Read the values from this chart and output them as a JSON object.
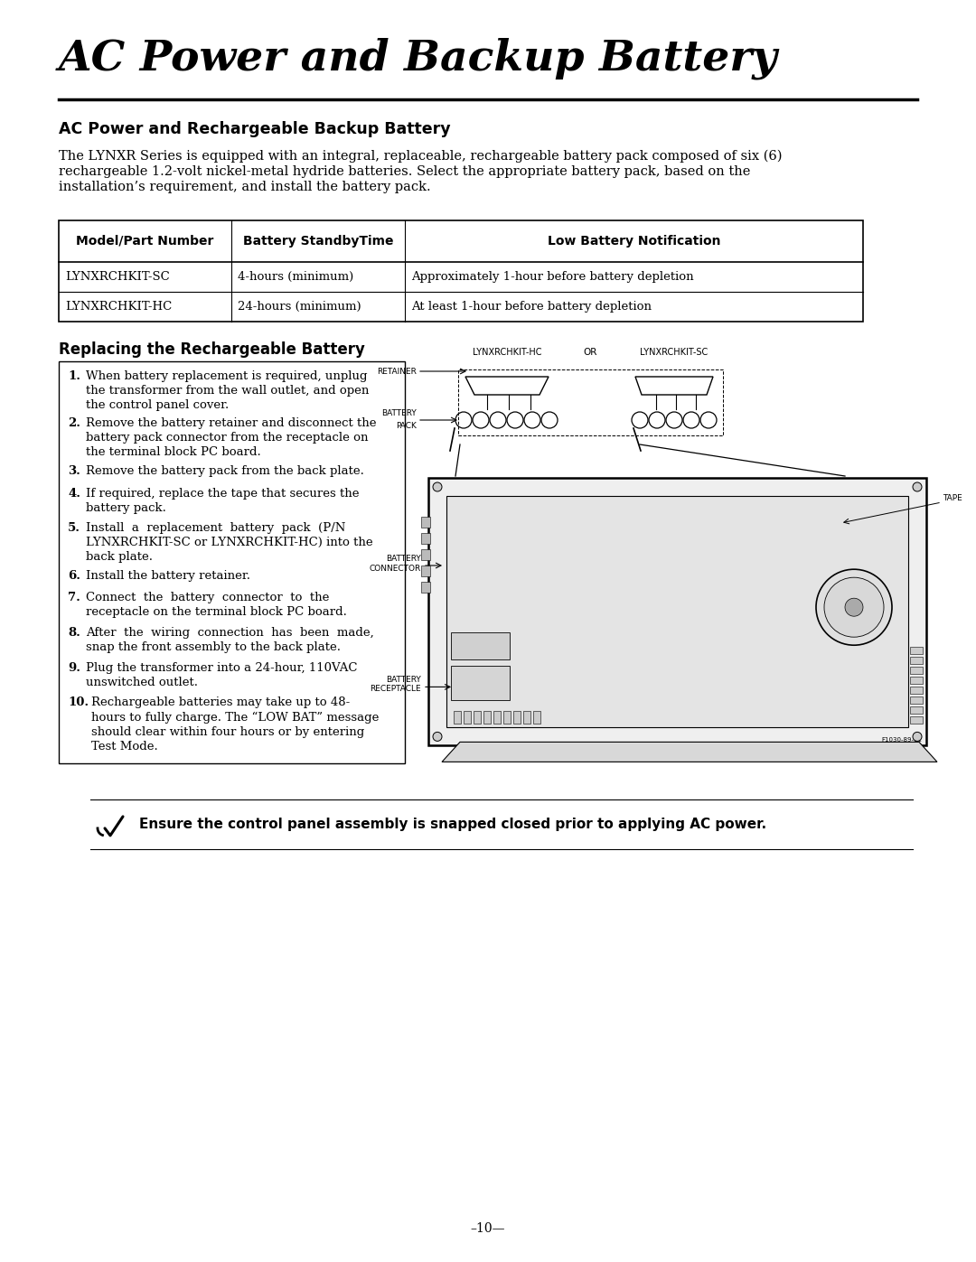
{
  "title": "AC Power and Backup Battery",
  "section_title": "AC Power and Rechargeable Backup Battery",
  "intro_line1": "The LYNXR Series is equipped with an integral, replaceable, rechargeable battery pack composed of six (6)",
  "intro_line2": "rechargeable 1.2-volt nickel-metal hydride batteries. Select the appropriate battery pack, based on the",
  "intro_line3": "installation’s requirement, and install the battery pack.",
  "table_headers": [
    "Model/Part Number",
    "Battery StandbyTime",
    "Low Battery Notification"
  ],
  "table_rows": [
    [
      "LYNXRCHKIT-SC",
      "4-hours (minimum)",
      "Approximately 1-hour before battery depletion"
    ],
    [
      "LYNXRCHKIT-HC",
      "24-hours (minimum)",
      "At least 1-hour before battery depletion"
    ]
  ],
  "replacing_title": "Replacing the Rechargeable Battery",
  "steps": [
    [
      "1.",
      "When battery replacement is required, unplug\nthe transformer from the wall outlet, and open\nthe control panel cover."
    ],
    [
      "2.",
      "Remove the battery retainer and disconnect the\nbattery pack connector from the receptacle on\nthe terminal block PC board."
    ],
    [
      "3.",
      "Remove the battery pack from the back plate."
    ],
    [
      "4.",
      "If required, replace the tape that secures the\nbattery pack."
    ],
    [
      "5.",
      "Install  a  replacement  battery  pack  (P/N\nLYNXRCHKIT-SC or LYNXRCHKIT-HC) into the\nback plate."
    ],
    [
      "6.",
      "Install the battery retainer."
    ],
    [
      "7.",
      "Connect  the  battery  connector  to  the\nreceptacle on the terminal block PC board."
    ],
    [
      "8.",
      "After  the  wiring  connection  has  been  made,\nsnap the front assembly to the back plate."
    ],
    [
      "9.",
      "Plug the transformer into a 24-hour, 110VAC\nunswitched outlet."
    ],
    [
      "10.",
      "Rechargeable batteries may take up to 48-\nhours to fully charge. The “LOW BAT” message\nshould clear within four hours or by entering\nTest Mode."
    ]
  ],
  "note_text": "Ensure the control panel assembly is snapped closed prior to applying AC power.",
  "page_number": "–10—",
  "bg_color": "#ffffff"
}
